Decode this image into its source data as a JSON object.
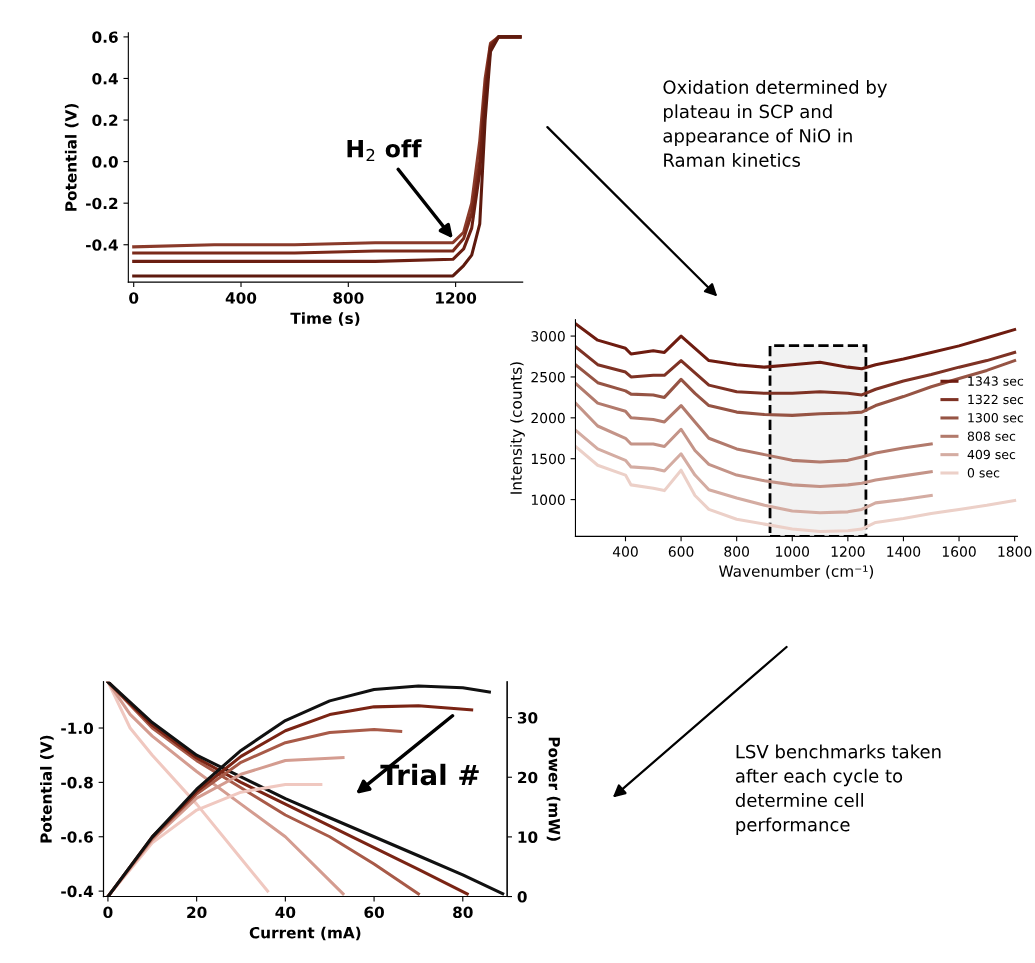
{
  "chart_data": [
    {
      "type": "line",
      "xlabel": "Time (s)",
      "ylabel": "Potential (V)",
      "xlim": [
        -20,
        1450
      ],
      "ylim": [
        -0.58,
        0.62
      ],
      "xticks": [
        0,
        400,
        800,
        1200
      ],
      "yticks": [
        -0.4,
        -0.2,
        {
          "value": 0,
          "label": "0.0"
        },
        0.2,
        0.4,
        0.6
      ],
      "grid": false,
      "legend": false,
      "x": [
        0,
        300,
        600,
        900,
        1190,
        1230,
        1260,
        1290,
        1310,
        1330,
        1360,
        1440
      ],
      "series": [
        {
          "color": "#8a3a2a",
          "values": [
            -0.41,
            -0.4,
            -0.4,
            -0.39,
            -0.39,
            -0.34,
            -0.2,
            0.1,
            0.4,
            0.57,
            0.6,
            0.6
          ]
        },
        {
          "color": "#7a2a1a",
          "values": [
            -0.44,
            -0.44,
            -0.44,
            -0.43,
            -0.43,
            -0.37,
            -0.25,
            0.0,
            0.35,
            0.56,
            0.6,
            0.6
          ]
        },
        {
          "color": "#6b1f12",
          "values": [
            -0.48,
            -0.48,
            -0.48,
            -0.48,
            -0.47,
            -0.42,
            -0.32,
            -0.05,
            0.3,
            0.55,
            0.6,
            0.6
          ]
        },
        {
          "color": "#5e1a0e",
          "values": [
            -0.55,
            -0.55,
            -0.55,
            -0.55,
            -0.55,
            -0.5,
            -0.45,
            -0.3,
            0.2,
            0.53,
            0.6,
            0.6
          ]
        }
      ],
      "annotations": [
        {
          "text": "H$_{2}$ off",
          "x": 1190,
          "y": -0.37
        }
      ]
    },
    {
      "type": "line",
      "xlabel": "Wavenumber (cm⁻¹)",
      "ylabel": "Intensity (counts)",
      "xlim": [
        220,
        1810
      ],
      "ylim": [
        550,
        3200
      ],
      "xticks": [
        400,
        600,
        800,
        1000,
        1200,
        1400,
        1600,
        1800
      ],
      "yticks": [
        1000,
        1500,
        2000,
        2500,
        3000
      ],
      "grid": false,
      "legend": "right",
      "x": [
        220,
        300,
        400,
        420,
        500,
        540,
        600,
        650,
        700,
        800,
        900,
        1000,
        1100,
        1200,
        1250,
        1300,
        1400,
        1500,
        1600,
        1700,
        1800
      ],
      "series": [
        {
          "name": "1343 sec",
          "color": "#6e1c10",
          "values": [
            3150,
            2950,
            2850,
            2780,
            2820,
            2800,
            3000,
            2850,
            2700,
            2650,
            2620,
            2650,
            2680,
            2620,
            2600,
            2650,
            2720,
            2800,
            2880,
            2980,
            3080
          ]
        },
        {
          "name": "1322 sec",
          "color": "#7e3224",
          "values": [
            2870,
            2650,
            2560,
            2500,
            2520,
            2520,
            2700,
            2550,
            2400,
            2320,
            2300,
            2300,
            2320,
            2300,
            2280,
            2350,
            2450,
            2530,
            2620,
            2700,
            2800
          ]
        },
        {
          "name": "1300 sec",
          "color": "#965444",
          "values": [
            2650,
            2430,
            2330,
            2290,
            2280,
            2250,
            2470,
            2300,
            2150,
            2070,
            2040,
            2030,
            2050,
            2060,
            2070,
            2150,
            2260,
            2380,
            2480,
            2580,
            2700
          ]
        },
        {
          "name": "808 sec",
          "color": "#b27a6c",
          "values": [
            2420,
            2180,
            2080,
            2000,
            1980,
            1950,
            2150,
            1950,
            1750,
            1620,
            1550,
            1480,
            1460,
            1480,
            1520,
            1570,
            1630,
            1680,
            null,
            null,
            null
          ]
        },
        {
          "color": "#c49488",
          "values": [
            2180,
            1900,
            1750,
            1680,
            1680,
            1650,
            1860,
            1600,
            1430,
            1300,
            1230,
            1180,
            1160,
            1180,
            1200,
            1240,
            1290,
            1340,
            null,
            null,
            null
          ]
        },
        {
          "name": "409 sec",
          "color": "#d4aca2",
          "values": [
            1850,
            1620,
            1480,
            1400,
            1380,
            1350,
            1560,
            1300,
            1120,
            1020,
            930,
            860,
            840,
            850,
            880,
            960,
            1000,
            1050,
            null,
            null,
            null
          ]
        },
        {
          "name": "0 sec",
          "color": "#ecd0c8",
          "values": [
            1650,
            1420,
            1300,
            1180,
            1140,
            1110,
            1360,
            1050,
            880,
            760,
            700,
            640,
            610,
            620,
            640,
            720,
            770,
            830,
            880,
            930,
            990
          ]
        }
      ],
      "bands": [
        {
          "axis": "x",
          "from": 920,
          "to": 1265,
          "color": "#000000"
        }
      ],
      "annotations": [
        "Oxidation determined by\nplateau in SCP and\nappearance of NiO in\nRaman kinetics"
      ]
    },
    {
      "type": "line",
      "xlabel": "Current (mA)",
      "ylabel": "Potential (V)",
      "y2label": "Power (mW)",
      "xlim": [
        -1,
        90
      ],
      "ylim": [
        -0.38,
        -1.17
      ],
      "y2lim": [
        0,
        36
      ],
      "xticks": [
        0,
        20,
        40,
        60,
        80
      ],
      "yticks": [
        {
          "value": -1,
          "label": "-1.0"
        },
        -0.8,
        -0.6,
        -0.4
      ],
      "y2ticks": [
        0,
        10,
        20,
        30
      ],
      "grid": false,
      "legend": false,
      "series": [
        {
          "color": "#f0c8c0",
          "x": [
            0,
            5,
            10,
            20,
            30,
            36
          ],
          "values": [
            -1.17,
            -1.0,
            -0.9,
            -0.72,
            -0.52,
            -0.4
          ]
        },
        {
          "color": "#d49c90",
          "x": [
            0,
            5,
            10,
            20,
            30,
            40,
            53
          ],
          "values": [
            -1.17,
            -1.05,
            -0.97,
            -0.84,
            -0.72,
            -0.6,
            -0.39
          ]
        },
        {
          "color": "#a85a48",
          "x": [
            0,
            10,
            20,
            30,
            40,
            50,
            60,
            70
          ],
          "values": [
            -1.17,
            -1.0,
            -0.88,
            -0.78,
            -0.68,
            -0.6,
            -0.5,
            -0.39
          ]
        },
        {
          "color": "#7a2414",
          "x": [
            0,
            10,
            20,
            30,
            40,
            50,
            60,
            70,
            81
          ],
          "values": [
            -1.17,
            -1.01,
            -0.89,
            -0.8,
            -0.72,
            -0.64,
            -0.56,
            -0.48,
            -0.39
          ]
        },
        {
          "color": "#111111",
          "x": [
            0,
            10,
            20,
            30,
            40,
            50,
            60,
            70,
            80,
            89
          ],
          "values": [
            -1.17,
            -1.02,
            -0.9,
            -0.82,
            -0.74,
            -0.67,
            -0.6,
            -0.53,
            -0.46,
            -0.39
          ]
        },
        {
          "color": "#f0c8c0",
          "axis": "y2",
          "x": [
            0,
            10,
            20,
            30,
            40,
            48
          ],
          "values": [
            0,
            9,
            14.5,
            17.5,
            18.8,
            18.8
          ]
        },
        {
          "color": "#d49c90",
          "axis": "y2",
          "x": [
            0,
            10,
            20,
            30,
            40,
            53
          ],
          "values": [
            0,
            9.5,
            16.5,
            20.5,
            22.8,
            23.3
          ]
        },
        {
          "color": "#a85a48",
          "axis": "y2",
          "x": [
            0,
            10,
            20,
            30,
            40,
            50,
            60,
            66
          ],
          "values": [
            0,
            9.8,
            17.2,
            22.5,
            25.8,
            27.5,
            28,
            27.7
          ]
        },
        {
          "color": "#7a2414",
          "axis": "y2",
          "x": [
            0,
            10,
            20,
            30,
            40,
            50,
            60,
            70,
            82
          ],
          "values": [
            0,
            10,
            17.6,
            23.5,
            27.8,
            30.5,
            31.8,
            32,
            31.3
          ]
        },
        {
          "color": "#111111",
          "axis": "y2",
          "x": [
            0,
            10,
            20,
            30,
            40,
            50,
            60,
            70,
            80,
            86
          ],
          "values": [
            0,
            10,
            18,
            24.5,
            29.5,
            32.8,
            34.7,
            35.3,
            35,
            34.3
          ]
        }
      ],
      "annotations": [
        "Trial #",
        "LSV benchmarks taken\nafter each cycle to\ndetermine cell\nperformance"
      ]
    }
  ]
}
